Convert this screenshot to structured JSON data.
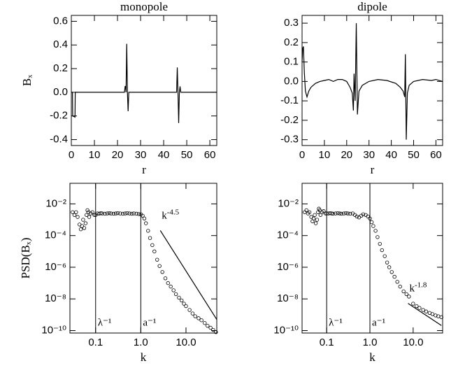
{
  "chart_data": [
    {
      "type": "line",
      "title": "monopole",
      "xlabel": "r",
      "ylabel": "Bₓ",
      "color": "#000000",
      "xlim": [
        0,
        63
      ],
      "xticks": [
        0,
        10,
        20,
        30,
        40,
        50,
        60
      ],
      "ylim": [
        -0.45,
        0.65
      ],
      "yticks": [
        -0.4,
        -0.2,
        {
          "value": 0,
          "label": "0.0"
        },
        0.2,
        0.4,
        0.6
      ],
      "x": [
        0,
        0.5,
        0.6,
        1.6,
        1.7,
        2.0,
        23,
        23.3,
        23.5,
        23.7,
        24.0,
        24.3,
        24.6,
        24.9,
        25.2,
        45.6,
        45.9,
        46.2,
        46.5,
        46.8,
        47.1,
        47.4,
        63
      ],
      "values": [
        0,
        0,
        -0.2,
        -0.21,
        0,
        0,
        0,
        0.05,
        0.05,
        0,
        0.41,
        0,
        -0.16,
        0,
        0,
        0,
        0.21,
        0,
        -0.26,
        0,
        0.05,
        0,
        0
      ]
    },
    {
      "type": "line",
      "title": "dipole",
      "xlabel": "r",
      "color": "#000000",
      "xlim": [
        0,
        63
      ],
      "xticks": [
        0,
        10,
        20,
        30,
        40,
        50,
        60
      ],
      "ylim": [
        -0.33,
        0.34
      ],
      "yticks": [
        -0.3,
        -0.2,
        -0.1,
        {
          "value": 0,
          "label": "0.0"
        },
        0.1,
        0.2,
        0.3
      ],
      "x": [
        0,
        0.3,
        0.6,
        1.0,
        1.5,
        2.2,
        3,
        4,
        6,
        8,
        10,
        12,
        14,
        16,
        18,
        20,
        21.5,
        22.5,
        23,
        23.3,
        23.8,
        24.3,
        24.8,
        25.5,
        27,
        30,
        34,
        38,
        42,
        44,
        45.3,
        46,
        46.3,
        46.7,
        47.2,
        48,
        50,
        54,
        58,
        60,
        63
      ],
      "values": [
        0.1,
        0.17,
        0.18,
        0.05,
        -0.05,
        -0.08,
        -0.05,
        -0.03,
        -0.01,
        0.0,
        0.005,
        0.01,
        0.0,
        0.01,
        0.01,
        0.0,
        -0.03,
        -0.06,
        -0.15,
        0.04,
        -0.1,
        0.3,
        -0.17,
        -0.05,
        -0.02,
        0.0,
        0.01,
        0.005,
        -0.01,
        -0.03,
        -0.05,
        -0.08,
        0.14,
        -0.3,
        -0.06,
        -0.02,
        0.0,
        0.01,
        0.005,
        0.01,
        0.0
      ]
    },
    {
      "type": "scatter",
      "xlabel": "k",
      "ylabel": "PSD(Bₓ)",
      "color": "#000000",
      "xscale": "log",
      "yscale": "log",
      "xlim": [
        0.027,
        48
      ],
      "xticks": [
        0.1,
        {
          "value": 1,
          "label": "1.0"
        },
        {
          "value": 10,
          "label": "10.0"
        }
      ],
      "ylim": [
        7e-11,
        0.2
      ],
      "yticks": [
        {
          "value": 1e-10,
          "label": "10⁻¹⁰"
        },
        {
          "value": 1e-08,
          "label": "10⁻⁸"
        },
        {
          "value": 1e-06,
          "label": "10⁻⁶"
        },
        {
          "value": 0.0001,
          "label": "10⁻⁴"
        },
        {
          "value": 0.01,
          "label": "10⁻²"
        }
      ],
      "x": [
        0.031,
        0.034,
        0.037,
        0.04,
        0.044,
        0.047,
        0.05,
        0.053,
        0.056,
        0.06,
        0.063,
        0.066,
        0.069,
        0.072,
        0.078,
        0.085,
        0.094,
        0.1,
        0.11,
        0.12,
        0.13,
        0.14,
        0.16,
        0.18,
        0.2,
        0.22,
        0.25,
        0.28,
        0.31,
        0.35,
        0.4,
        0.45,
        0.5,
        0.56,
        0.63,
        0.7,
        0.8,
        0.9,
        1.0,
        1.1,
        1.2,
        1.3,
        1.45,
        1.6,
        1.8,
        2.0,
        2.3,
        2.6,
        3.0,
        3.5,
        4.0,
        4.6,
        5.3,
        6.0,
        7,
        8,
        9,
        10,
        12,
        14,
        16,
        19,
        22,
        26,
        30,
        35,
        40,
        46
      ],
      "values": [
        0.003,
        0.002,
        0.003,
        0.0015,
        0.0005,
        0.00025,
        0.0004,
        0.001,
        0.0003,
        0.0006,
        0.002,
        0.004,
        0.003,
        0.0015,
        0.0025,
        0.003,
        0.002,
        0.002,
        0.0025,
        0.0024,
        0.0026,
        0.0025,
        0.0024,
        0.0025,
        0.0026,
        0.0025,
        0.0024,
        0.0025,
        0.0026,
        0.0025,
        0.0024,
        0.0025,
        0.0026,
        0.0025,
        0.0024,
        0.0025,
        0.0024,
        0.0023,
        0.0022,
        0.0018,
        0.0012,
        0.0006,
        0.0002,
        7e-05,
        2.5e-05,
        1e-05,
        3e-06,
        1.2e-06,
        5e-07,
        2e-07,
        1e-07,
        6e-08,
        3.5e-08,
        2e-08,
        1.2e-08,
        8e-09,
        5e-09,
        3.5e-09,
        2e-09,
        1.2e-09,
        8e-10,
        6e-10,
        4.5e-10,
        3e-10,
        2e-10,
        1.5e-10,
        1.1e-10,
        8e-11
      ],
      "vlines": [
        {
          "x": 0.1,
          "label": "λ⁻¹"
        },
        {
          "x": 1,
          "label": "a⁻¹"
        }
      ],
      "power_law": {
        "x": [
          2.7,
          48
        ],
        "values": [
          0.00021,
          5e-10
        ],
        "label": "k",
        "exponent": "-4.5"
      }
    },
    {
      "type": "scatter",
      "xlabel": "k",
      "color": "#000000",
      "xscale": "log",
      "yscale": "log",
      "xlim": [
        0.027,
        48
      ],
      "xticks": [
        0.1,
        {
          "value": 1,
          "label": "1.0"
        },
        {
          "value": 10,
          "label": "10.0"
        }
      ],
      "ylim": [
        7e-11,
        0.2
      ],
      "yticks": [
        {
          "value": 1e-10,
          "label": "10⁻¹⁰"
        },
        {
          "value": 1e-08,
          "label": "10⁻⁸"
        },
        {
          "value": 1e-06,
          "label": "10⁻⁶"
        },
        {
          "value": 0.0001,
          "label": "10⁻⁴"
        },
        {
          "value": 0.01,
          "label": "10⁻²"
        }
      ],
      "x": [
        0.031,
        0.034,
        0.037,
        0.04,
        0.044,
        0.047,
        0.05,
        0.053,
        0.056,
        0.06,
        0.063,
        0.066,
        0.069,
        0.072,
        0.078,
        0.085,
        0.094,
        0.1,
        0.11,
        0.12,
        0.13,
        0.14,
        0.16,
        0.18,
        0.2,
        0.22,
        0.25,
        0.28,
        0.31,
        0.35,
        0.4,
        0.45,
        0.5,
        0.56,
        0.63,
        0.7,
        0.8,
        0.9,
        1.0,
        1.1,
        1.2,
        1.35,
        1.5,
        1.7,
        1.9,
        2.2,
        2.5,
        2.8,
        3.2,
        3.7,
        4.3,
        5,
        6,
        7,
        8,
        10,
        12,
        14,
        17,
        20,
        24,
        28,
        33,
        38,
        45
      ],
      "values": [
        0.003,
        0.004,
        0.0025,
        0.003,
        0.0015,
        0.0008,
        0.0012,
        0.002,
        0.0006,
        0.001,
        0.003,
        0.005,
        0.004,
        0.002,
        0.003,
        0.0035,
        0.0025,
        0.0025,
        0.0025,
        0.0026,
        0.0025,
        0.0024,
        0.0025,
        0.0026,
        0.0025,
        0.0024,
        0.0025,
        0.0026,
        0.0025,
        0.0024,
        0.0025,
        0.002,
        0.0016,
        0.0014,
        0.0018,
        0.0022,
        0.002,
        0.0016,
        0.0012,
        0.0007,
        0.0004,
        0.0002,
        8e-05,
        3e-05,
        1.2e-05,
        5e-06,
        2e-06,
        1e-06,
        5e-07,
        2.5e-07,
        1.2e-07,
        6e-08,
        3e-08,
        2e-08,
        1.4e-08,
        5e-09,
        3.5e-09,
        2.7e-09,
        2e-09,
        1.6e-09,
        1.3e-09,
        1.1e-09,
        9e-10,
        8e-10,
        7e-10
      ],
      "vlines": [
        {
          "x": 0.1,
          "label": "λ⁻¹"
        },
        {
          "x": 1,
          "label": "a⁻¹"
        }
      ],
      "power_law": {
        "x": [
          7.6,
          45
        ],
        "values": [
          5.2e-09,
          2.1e-10
        ],
        "label": "k",
        "exponent": "-1.8"
      }
    }
  ]
}
